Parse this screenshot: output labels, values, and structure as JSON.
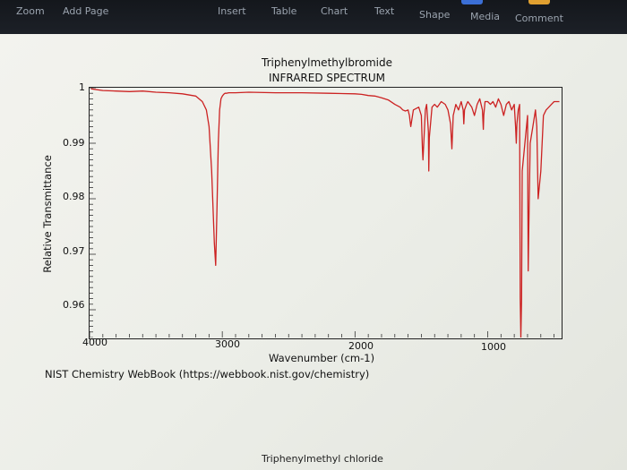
{
  "toolbar": {
    "left_items": [
      "Zoom",
      "Add Page"
    ],
    "right_items": [
      "Insert",
      "Table",
      "Chart",
      "Text",
      "Shape",
      "Media",
      "Comment"
    ]
  },
  "chart": {
    "title": "Triphenylmethylbromide",
    "subtitle": "INFRARED SPECTRUM",
    "xlabel": "Wavenumber (cm-1)",
    "ylabel": "Relative Transmittance",
    "source": "NIST Chemistry WebBook (https://webbook.nist.gov/chemistry)",
    "next_title": "Triphenylmethyl chloride"
  },
  "chart_data": {
    "type": "line",
    "title": "Triphenylmethylbromide",
    "subtitle": "INFRARED SPECTRUM",
    "xlabel": "Wavenumber (cm-1)",
    "ylabel": "Relative Transmittance",
    "xlim": [
      4000,
      450
    ],
    "ylim": [
      0.955,
      1.0
    ],
    "x_reversed": true,
    "x_ticks": [
      "4000",
      "3000",
      "2000",
      "1000"
    ],
    "y_ticks": [
      "1",
      "0.99",
      "0.98",
      "0.97",
      "0.96"
    ],
    "grid": false,
    "series": [
      {
        "color": "#cc2222",
        "x": [
          3990,
          3900,
          3800,
          3700,
          3600,
          3500,
          3400,
          3300,
          3200,
          3150,
          3120,
          3100,
          3080,
          3060,
          3050,
          3040,
          3030,
          3020,
          3010,
          3000,
          2990,
          2980,
          2970,
          2950,
          2900,
          2800,
          2600,
          2400,
          2200,
          2000,
          1950,
          1900,
          1850,
          1800,
          1750,
          1700,
          1660,
          1640,
          1620,
          1600,
          1595,
          1590,
          1585,
          1580,
          1560,
          1520,
          1500,
          1492,
          1488,
          1480,
          1470,
          1460,
          1447,
          1444,
          1440,
          1420,
          1400,
          1380,
          1350,
          1320,
          1300,
          1280,
          1270,
          1260,
          1240,
          1220,
          1200,
          1185,
          1180,
          1175,
          1160,
          1150,
          1120,
          1100,
          1080,
          1060,
          1040,
          1033,
          1030,
          1020,
          1000,
          980,
          960,
          940,
          920,
          900,
          880,
          860,
          840,
          820,
          800,
          790,
          785,
          780,
          770,
          760,
          755,
          750,
          745,
          740,
          720,
          700,
          698,
          695,
          690,
          680,
          660,
          640,
          630,
          620,
          600,
          580,
          560,
          540,
          520,
          500,
          480,
          460
        ],
        "y": [
          0.9998,
          0.9995,
          0.9994,
          0.9993,
          0.9994,
          0.9992,
          0.9991,
          0.9989,
          0.9985,
          0.9975,
          0.996,
          0.993,
          0.985,
          0.972,
          0.968,
          0.978,
          0.99,
          0.996,
          0.998,
          0.9985,
          0.9988,
          0.999,
          0.999,
          0.9991,
          0.9991,
          0.9992,
          0.9991,
          0.9991,
          0.999,
          0.9989,
          0.9988,
          0.9986,
          0.9985,
          0.9982,
          0.9978,
          0.997,
          0.9965,
          0.996,
          0.9958,
          0.996,
          0.9955,
          0.995,
          0.994,
          0.993,
          0.996,
          0.9965,
          0.995,
          0.989,
          0.987,
          0.991,
          0.996,
          0.997,
          0.992,
          0.985,
          0.991,
          0.9965,
          0.997,
          0.9965,
          0.9975,
          0.997,
          0.996,
          0.9935,
          0.989,
          0.995,
          0.997,
          0.996,
          0.9975,
          0.996,
          0.9935,
          0.996,
          0.997,
          0.9975,
          0.9965,
          0.995,
          0.997,
          0.998,
          0.996,
          0.9925,
          0.995,
          0.9975,
          0.9975,
          0.997,
          0.9975,
          0.9965,
          0.998,
          0.997,
          0.995,
          0.997,
          0.9975,
          0.996,
          0.997,
          0.993,
          0.99,
          0.9935,
          0.996,
          0.997,
          0.962,
          0.955,
          0.962,
          0.985,
          0.99,
          0.995,
          0.98,
          0.967,
          0.975,
          0.99,
          0.993,
          0.996,
          0.993,
          0.98,
          0.985,
          0.995,
          0.996,
          0.9965,
          0.997,
          0.9975,
          0.9975,
          0.9975
        ]
      }
    ]
  }
}
